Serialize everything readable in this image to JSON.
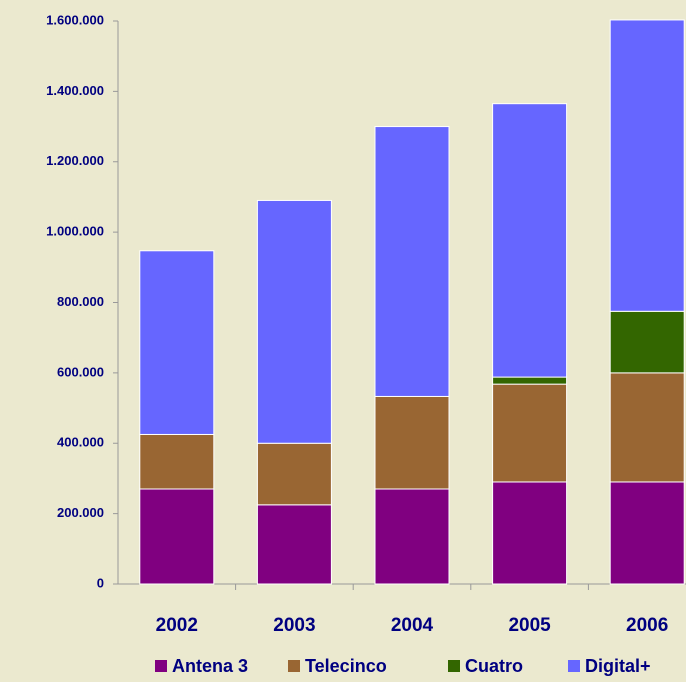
{
  "chart_data": {
    "type": "stacked-bar",
    "categories": [
      "2002",
      "2003",
      "2004",
      "2005",
      "2006"
    ],
    "series": [
      {
        "name": "Antena 3",
        "color": "#800080",
        "values": [
          270000,
          225000,
          270000,
          290000,
          290000
        ]
      },
      {
        "name": "Telecinco",
        "color": "#996633",
        "values": [
          155000,
          175000,
          263000,
          278000,
          310000
        ]
      },
      {
        "name": "Cuatro",
        "color": "#336600",
        "values": [
          0,
          0,
          0,
          20000,
          175000
        ]
      },
      {
        "name": "Digital+",
        "color": "#6666ff",
        "values": [
          522000,
          690000,
          767000,
          777000,
          828000
        ]
      }
    ],
    "ylim": [
      0,
      1600000
    ],
    "yticks": [
      0,
      {
        "value": 200000,
        "label": "200.000"
      },
      {
        "value": 400000,
        "label": "400.000"
      },
      {
        "value": 600000,
        "label": "600.000"
      },
      {
        "value": 800000,
        "label": "800.000"
      },
      {
        "value": 1000000,
        "label": "1.000.000"
      },
      {
        "value": 1200000,
        "label": "1.200.000"
      },
      {
        "value": 1400000,
        "label": "1.400.000"
      },
      {
        "value": 1600000,
        "label": "1.600.000"
      }
    ],
    "legend": "bottom"
  }
}
